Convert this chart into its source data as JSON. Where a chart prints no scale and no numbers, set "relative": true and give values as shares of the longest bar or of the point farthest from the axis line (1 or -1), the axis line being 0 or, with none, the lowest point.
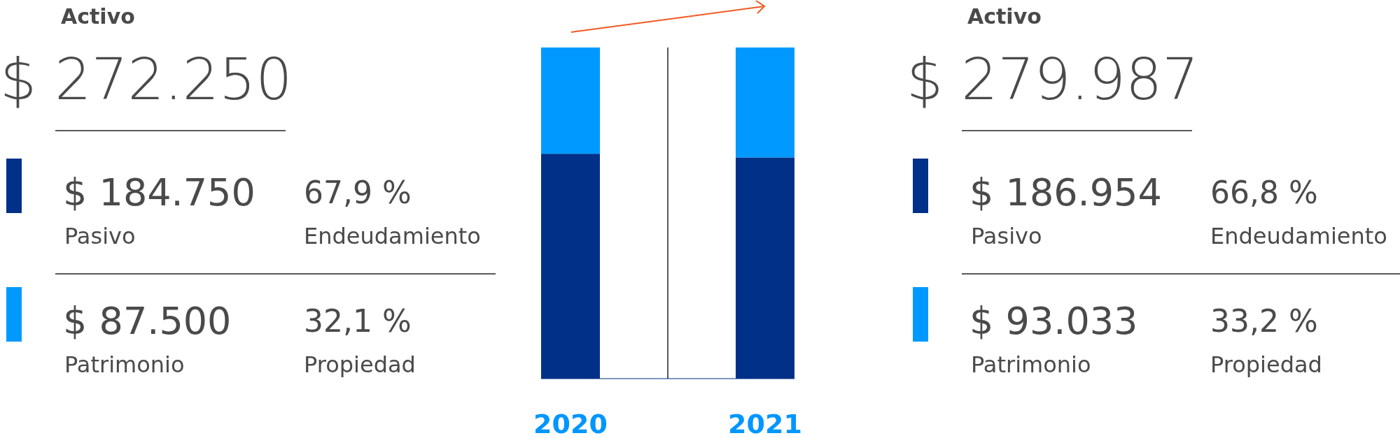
{
  "chart_data": [
    {
      "type": "other",
      "title": "Activo",
      "subtitle": "$ 272.250",
      "colors": [
        "#003087",
        "#0099ff"
      ],
      "annotations": [
        "$ 184.750",
        "Pasivo",
        "67,9 %",
        "Endeudamiento",
        "$ 87.500",
        "Patrimonio",
        "32,1 %",
        "Propiedad"
      ]
    },
    {
      "type": "bar",
      "stacked": true,
      "relative": true,
      "categories": [
        "2020",
        "2021"
      ],
      "series": [
        {
          "color": "#003087",
          "values": [
            0.679,
            0.668
          ]
        },
        {
          "color": "#0099ff",
          "values": [
            0.321,
            0.332
          ]
        }
      ]
    },
    {
      "type": "other",
      "title": "Activo",
      "subtitle": "$ 279.987",
      "colors": [
        "#003087",
        "#0099ff"
      ],
      "annotations": [
        "$ 186.954",
        "Pasivo",
        "66,8 %",
        "Endeudamiento",
        "$ 93.033",
        "Patrimonio",
        "33,2 %",
        "Propiedad"
      ]
    }
  ]
}
